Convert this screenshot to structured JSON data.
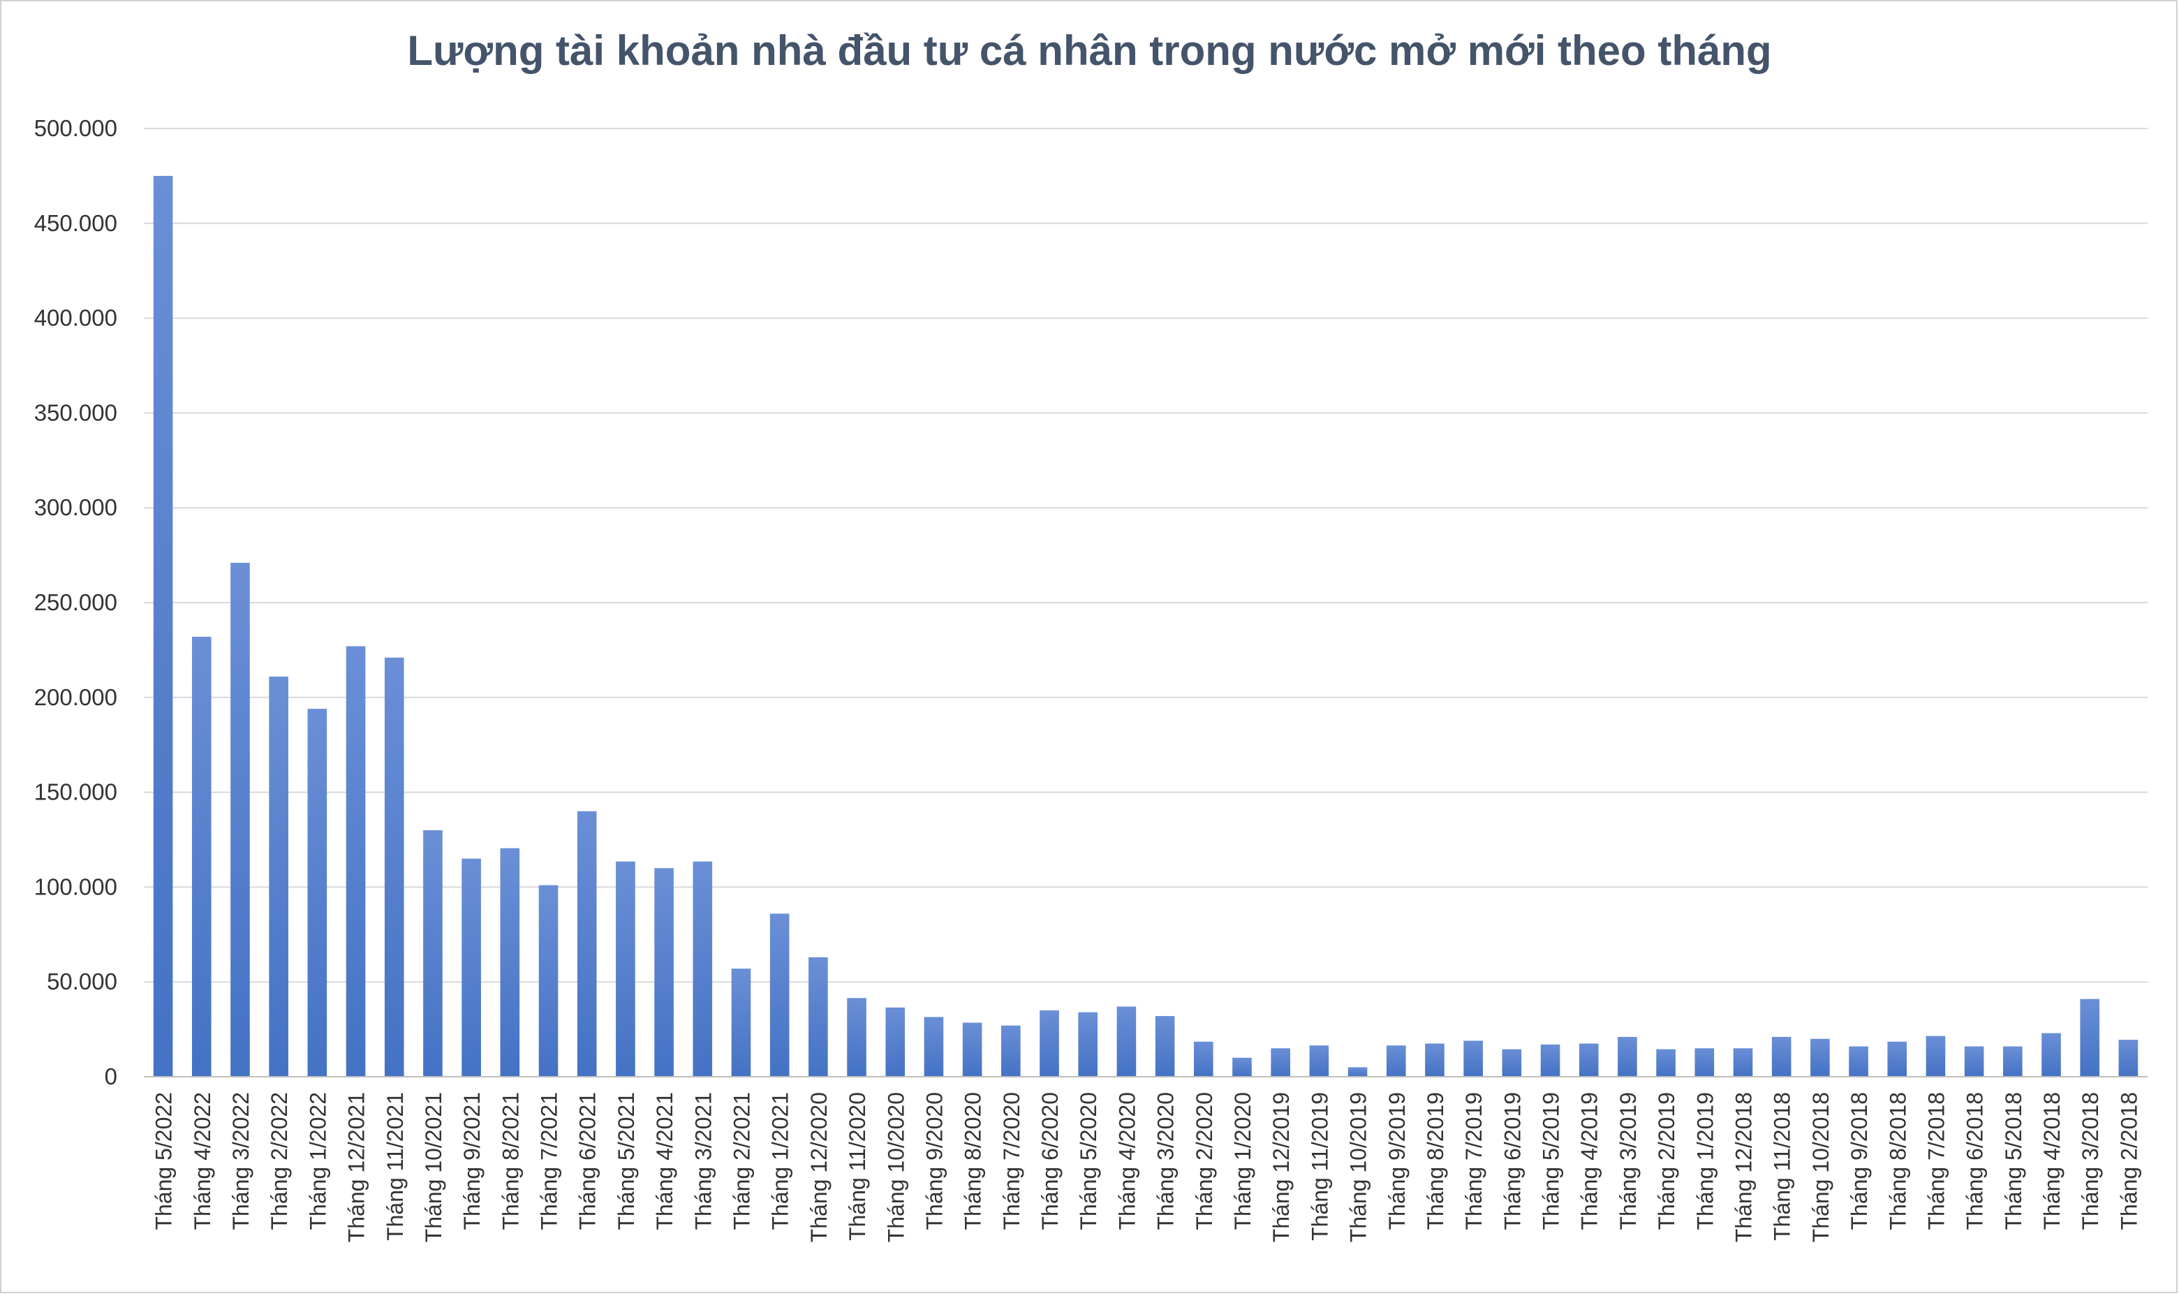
{
  "chart_data": {
    "type": "bar",
    "title": "Lượng tài khoản nhà đầu tư cá nhân trong nước mở mới theo tháng",
    "xlabel": "",
    "ylabel": "",
    "ylim": [
      0,
      500000
    ],
    "y_ticks": [
      0,
      50000,
      100000,
      150000,
      200000,
      250000,
      300000,
      350000,
      400000,
      450000,
      500000
    ],
    "y_tick_labels": [
      "0",
      "50.000",
      "100.000",
      "150.000",
      "200.000",
      "250.000",
      "300.000",
      "350.000",
      "400.000",
      "450.000",
      "500.000"
    ],
    "grid": true,
    "legend": "none",
    "bar_color": "#4472c4",
    "categories": [
      "Tháng 5/2022",
      "Tháng 4/2022",
      "Tháng 3/2022",
      "Tháng 2/2022",
      "Tháng 1/2022",
      "Tháng 12/2021",
      "Tháng 11/2021",
      "Tháng 10/2021",
      "Tháng 9/2021",
      "Tháng 8/2021",
      "Tháng 7/2021",
      "Tháng 6/2021",
      "Tháng 5/2021",
      "Tháng 4/2021",
      "Tháng 3/2021",
      "Tháng 2/2021",
      "Tháng 1/2021",
      "Tháng 12/2020",
      "Tháng 11/2020",
      "Tháng 10/2020",
      "Tháng 9/2020",
      "Tháng 8/2020",
      "Tháng 7/2020",
      "Tháng 6/2020",
      "Tháng 5/2020",
      "Tháng 4/2020",
      "Tháng 3/2020",
      "Tháng 2/2020",
      "Tháng 1/2020",
      "Tháng 12/2019",
      "Tháng 11/2019",
      "Tháng 10/2019",
      "Tháng 9/2019",
      "Tháng 8/2019",
      "Tháng 7/2019",
      "Tháng 6/2019",
      "Tháng 5/2019",
      "Tháng 4/2019",
      "Tháng 3/2019",
      "Tháng 2/2019",
      "Tháng 1/2019",
      "Tháng 12/2018",
      "Tháng 11/2018",
      "Tháng 10/2018",
      "Tháng 9/2018",
      "Tháng 8/2018",
      "Tháng 7/2018",
      "Tháng 6/2018",
      "Tháng 5/2018",
      "Tháng 4/2018",
      "Tháng 3/2018",
      "Tháng 2/2018"
    ],
    "values": [
      475000,
      232000,
      271000,
      211000,
      194000,
      227000,
      221000,
      130000,
      115000,
      120500,
      101000,
      140000,
      113500,
      110000,
      113500,
      57000,
      86000,
      63000,
      41500,
      36500,
      31500,
      28500,
      27000,
      35000,
      34000,
      37000,
      32000,
      18500,
      10000,
      15000,
      16500,
      5000,
      16500,
      17500,
      19000,
      14500,
      17000,
      17500,
      21000,
      14500,
      15000,
      15000,
      21000,
      20000,
      16000,
      18500,
      21500,
      16000,
      16000,
      23000,
      41000,
      19500
    ]
  }
}
